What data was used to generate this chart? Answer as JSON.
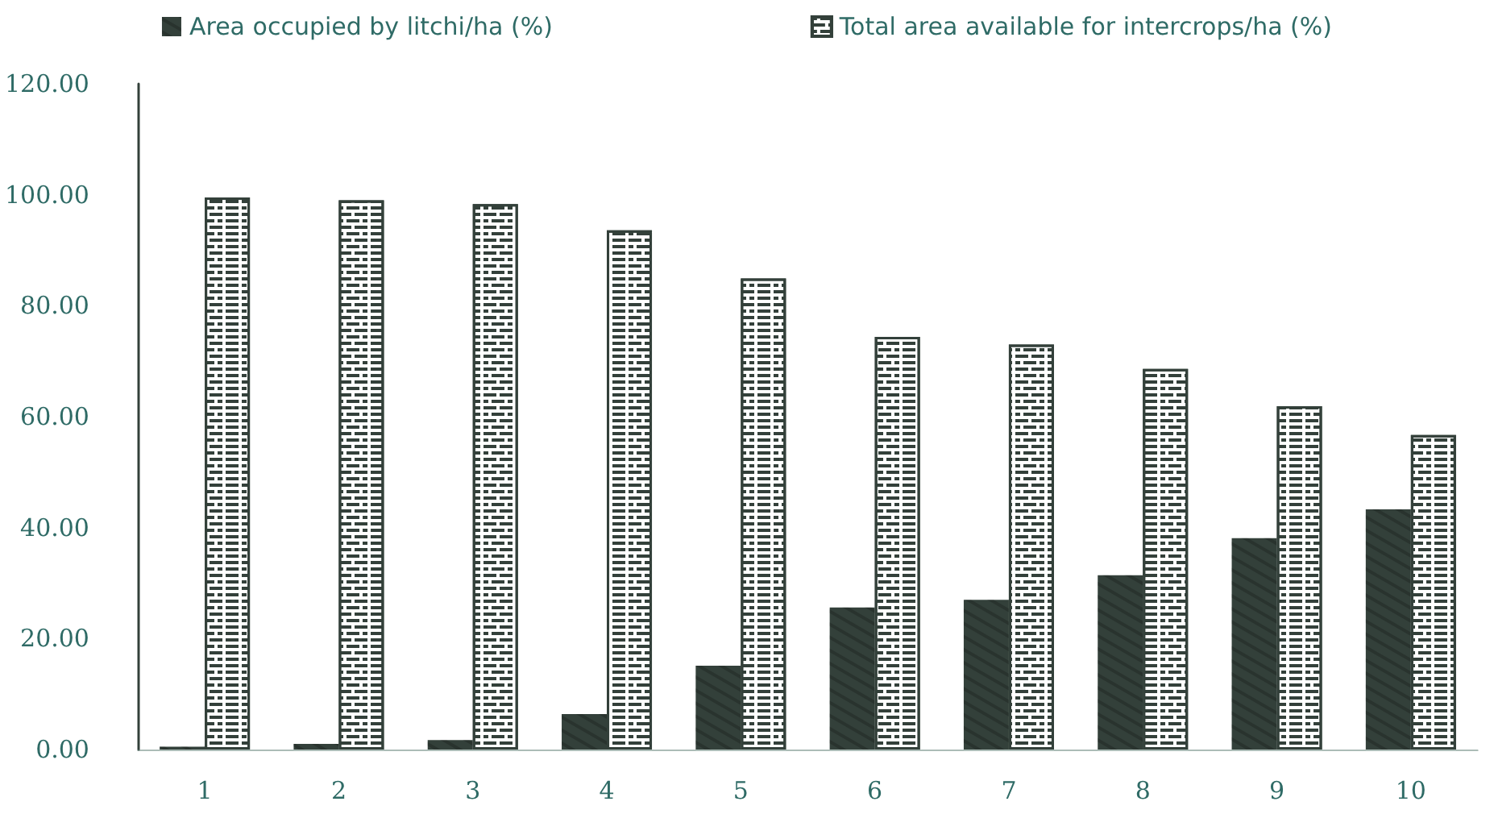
{
  "chart_data": {
    "type": "bar",
    "categories": [
      "1",
      "2",
      "3",
      "4",
      "5",
      "6",
      "7",
      "8",
      "9",
      "10"
    ],
    "series": [
      {
        "name": "Area occupied by litchi/ha (%)",
        "color": "#33403a",
        "values": [
          0.5,
          1.0,
          1.7,
          6.4,
          15.1,
          25.6,
          27.0,
          31.4,
          38.1,
          43.3
        ]
      },
      {
        "name": "Total area available for intercrops/ha (%)",
        "color": "#ffffff",
        "values": [
          99.5,
          99.0,
          98.3,
          93.6,
          84.9,
          74.4,
          73.0,
          68.6,
          61.9,
          56.7
        ]
      }
    ],
    "ylim": [
      0,
      120
    ],
    "yticks": [
      {
        "value": 0,
        "label": "0.00"
      },
      {
        "value": 20,
        "label": "20.00"
      },
      {
        "value": 40,
        "label": "40.00"
      },
      {
        "value": 60,
        "label": "60.00"
      },
      {
        "value": 80,
        "label": "80.00"
      },
      {
        "value": 100,
        "label": "100.00"
      },
      {
        "value": 120,
        "label": "120.00"
      }
    ],
    "grid": false,
    "legend": "top"
  }
}
